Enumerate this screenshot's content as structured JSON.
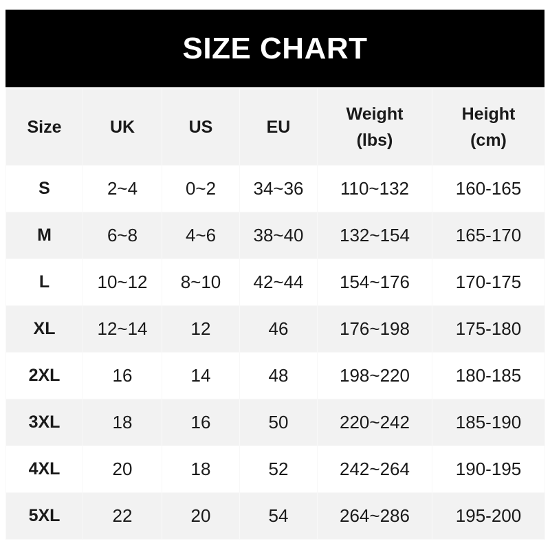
{
  "title": "SIZE CHART",
  "headers": [
    {
      "line1": "Size",
      "line2": ""
    },
    {
      "line1": "UK",
      "line2": ""
    },
    {
      "line1": "US",
      "line2": ""
    },
    {
      "line1": "EU",
      "line2": ""
    },
    {
      "line1": "Weight",
      "line2": "(lbs)"
    },
    {
      "line1": "Height",
      "line2": "(cm)"
    }
  ],
  "rows": [
    [
      "S",
      "2~4",
      "0~2",
      "34~36",
      "110~132",
      "160-165"
    ],
    [
      "M",
      "6~8",
      "4~6",
      "38~40",
      "132~154",
      "165-170"
    ],
    [
      "L",
      "10~12",
      "8~10",
      "42~44",
      "154~176",
      "170-175"
    ],
    [
      "XL",
      "12~14",
      "12",
      "46",
      "176~198",
      "175-180"
    ],
    [
      "2XL",
      "16",
      "14",
      "48",
      "198~220",
      "180-185"
    ],
    [
      "3XL",
      "18",
      "16",
      "50",
      "220~242",
      "185-190"
    ],
    [
      "4XL",
      "20",
      "18",
      "52",
      "242~264",
      "190-195"
    ],
    [
      "5XL",
      "22",
      "20",
      "54",
      "264~286",
      "195-200"
    ]
  ],
  "colors": {
    "title_bg": "#000000",
    "title_text": "#ffffff",
    "stripe": "#f2f2f2"
  }
}
